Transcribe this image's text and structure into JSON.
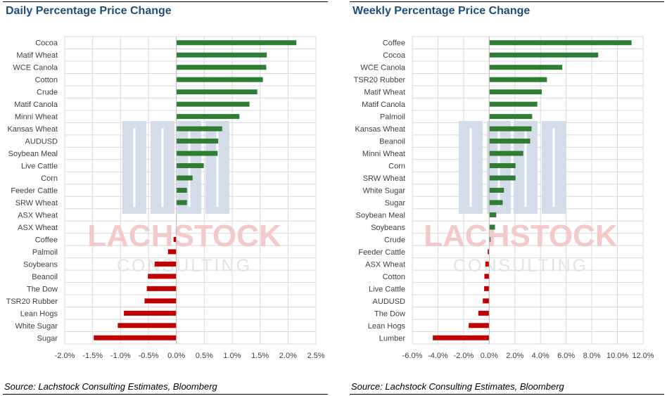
{
  "chart_data": [
    {
      "type": "bar",
      "orientation": "horizontal",
      "title": "Daily Percentage Price Change",
      "source": "Source: Lachstock Consulting Estimates, Bloomberg",
      "categories": [
        "Cocoa",
        "Matif Wheat",
        "WCE Canola",
        "Cotton",
        "Crude",
        "Matif Canola",
        "Minni Wheat",
        "Kansas Wheat",
        "AUDUSD",
        "Soybean Meal",
        "Live Cattle",
        "Corn",
        "Feeder Cattle",
        "SRW Wheat",
        "ASX Wheat",
        "ASX Wheat",
        "Coffee",
        "Palmoil",
        "Soybeans",
        "Beanoil",
        "The Dow",
        "TSR20 Rubber",
        "Lean Hogs",
        "White Sugar",
        "Sugar"
      ],
      "values": [
        2.15,
        1.62,
        1.61,
        1.55,
        1.45,
        1.31,
        1.13,
        0.82,
        0.75,
        0.74,
        0.49,
        0.29,
        0.19,
        0.19,
        0.0,
        0.0,
        -0.05,
        -0.15,
        -0.39,
        -0.51,
        -0.53,
        -0.57,
        -0.94,
        -1.05,
        -1.48
      ],
      "xlim": [
        -2.0,
        2.5
      ],
      "xticks": [
        -2.0,
        -1.5,
        -1.0,
        -0.5,
        0.0,
        0.5,
        1.0,
        1.5,
        2.0,
        2.5
      ],
      "xtick_labels": [
        "-2.0%",
        "-1.5%",
        "-1.0%",
        "-0.5%",
        "0.0%",
        "0.5%",
        "1.0%",
        "1.5%",
        "2.0%",
        "2.5%"
      ],
      "grid": true,
      "positive_color": "#2e7d32",
      "negative_color": "#c00000"
    },
    {
      "type": "bar",
      "orientation": "horizontal",
      "title": "Weekly Percentage Price Change",
      "source": "Source: Lachstock Consulting Estimates, Bloomberg",
      "categories": [
        "Coffee",
        "Cocoa",
        "WCE Canola",
        "TSR20 Rubber",
        "Matif Wheat",
        "Matif Canola",
        "Palmoil",
        "Kansas Wheat",
        "Beanoil",
        "Minni Wheat",
        "Corn",
        "SRW Wheat",
        "White Sugar",
        "Sugar",
        "Soybean Meal",
        "Soybeans",
        "Crude",
        "Feeder Cattle",
        "ASX Wheat",
        "Cotton",
        "Live Cattle",
        "AUDUSD",
        "The Dow",
        "Lean Hogs",
        "Lumber"
      ],
      "values": [
        11.1,
        8.5,
        5.7,
        4.5,
        4.1,
        3.75,
        3.35,
        3.3,
        3.2,
        2.65,
        2.05,
        2.05,
        1.15,
        1.05,
        0.55,
        0.45,
        0.1,
        -0.12,
        -0.3,
        -0.38,
        -0.4,
        -0.5,
        -0.85,
        -1.6,
        -4.4
      ],
      "xlim": [
        -6.0,
        12.0
      ],
      "xticks": [
        -6,
        -4,
        -2,
        0,
        2,
        4,
        6,
        8,
        10,
        12
      ],
      "xtick_labels": [
        "-6.0%",
        "-4.0%",
        "-2.0%",
        "0.0%",
        "2.0%",
        "4.0%",
        "6.0%",
        "8.0%",
        "10.0%",
        "12.0%"
      ],
      "grid": true,
      "positive_color": "#2e7d32",
      "negative_color": "#c00000"
    }
  ],
  "watermark": {
    "brand": "LACHSTOCK",
    "sub": "CONSULTING",
    "brand_color": "#f3c9c9",
    "logo_color": "#d4dcea"
  }
}
